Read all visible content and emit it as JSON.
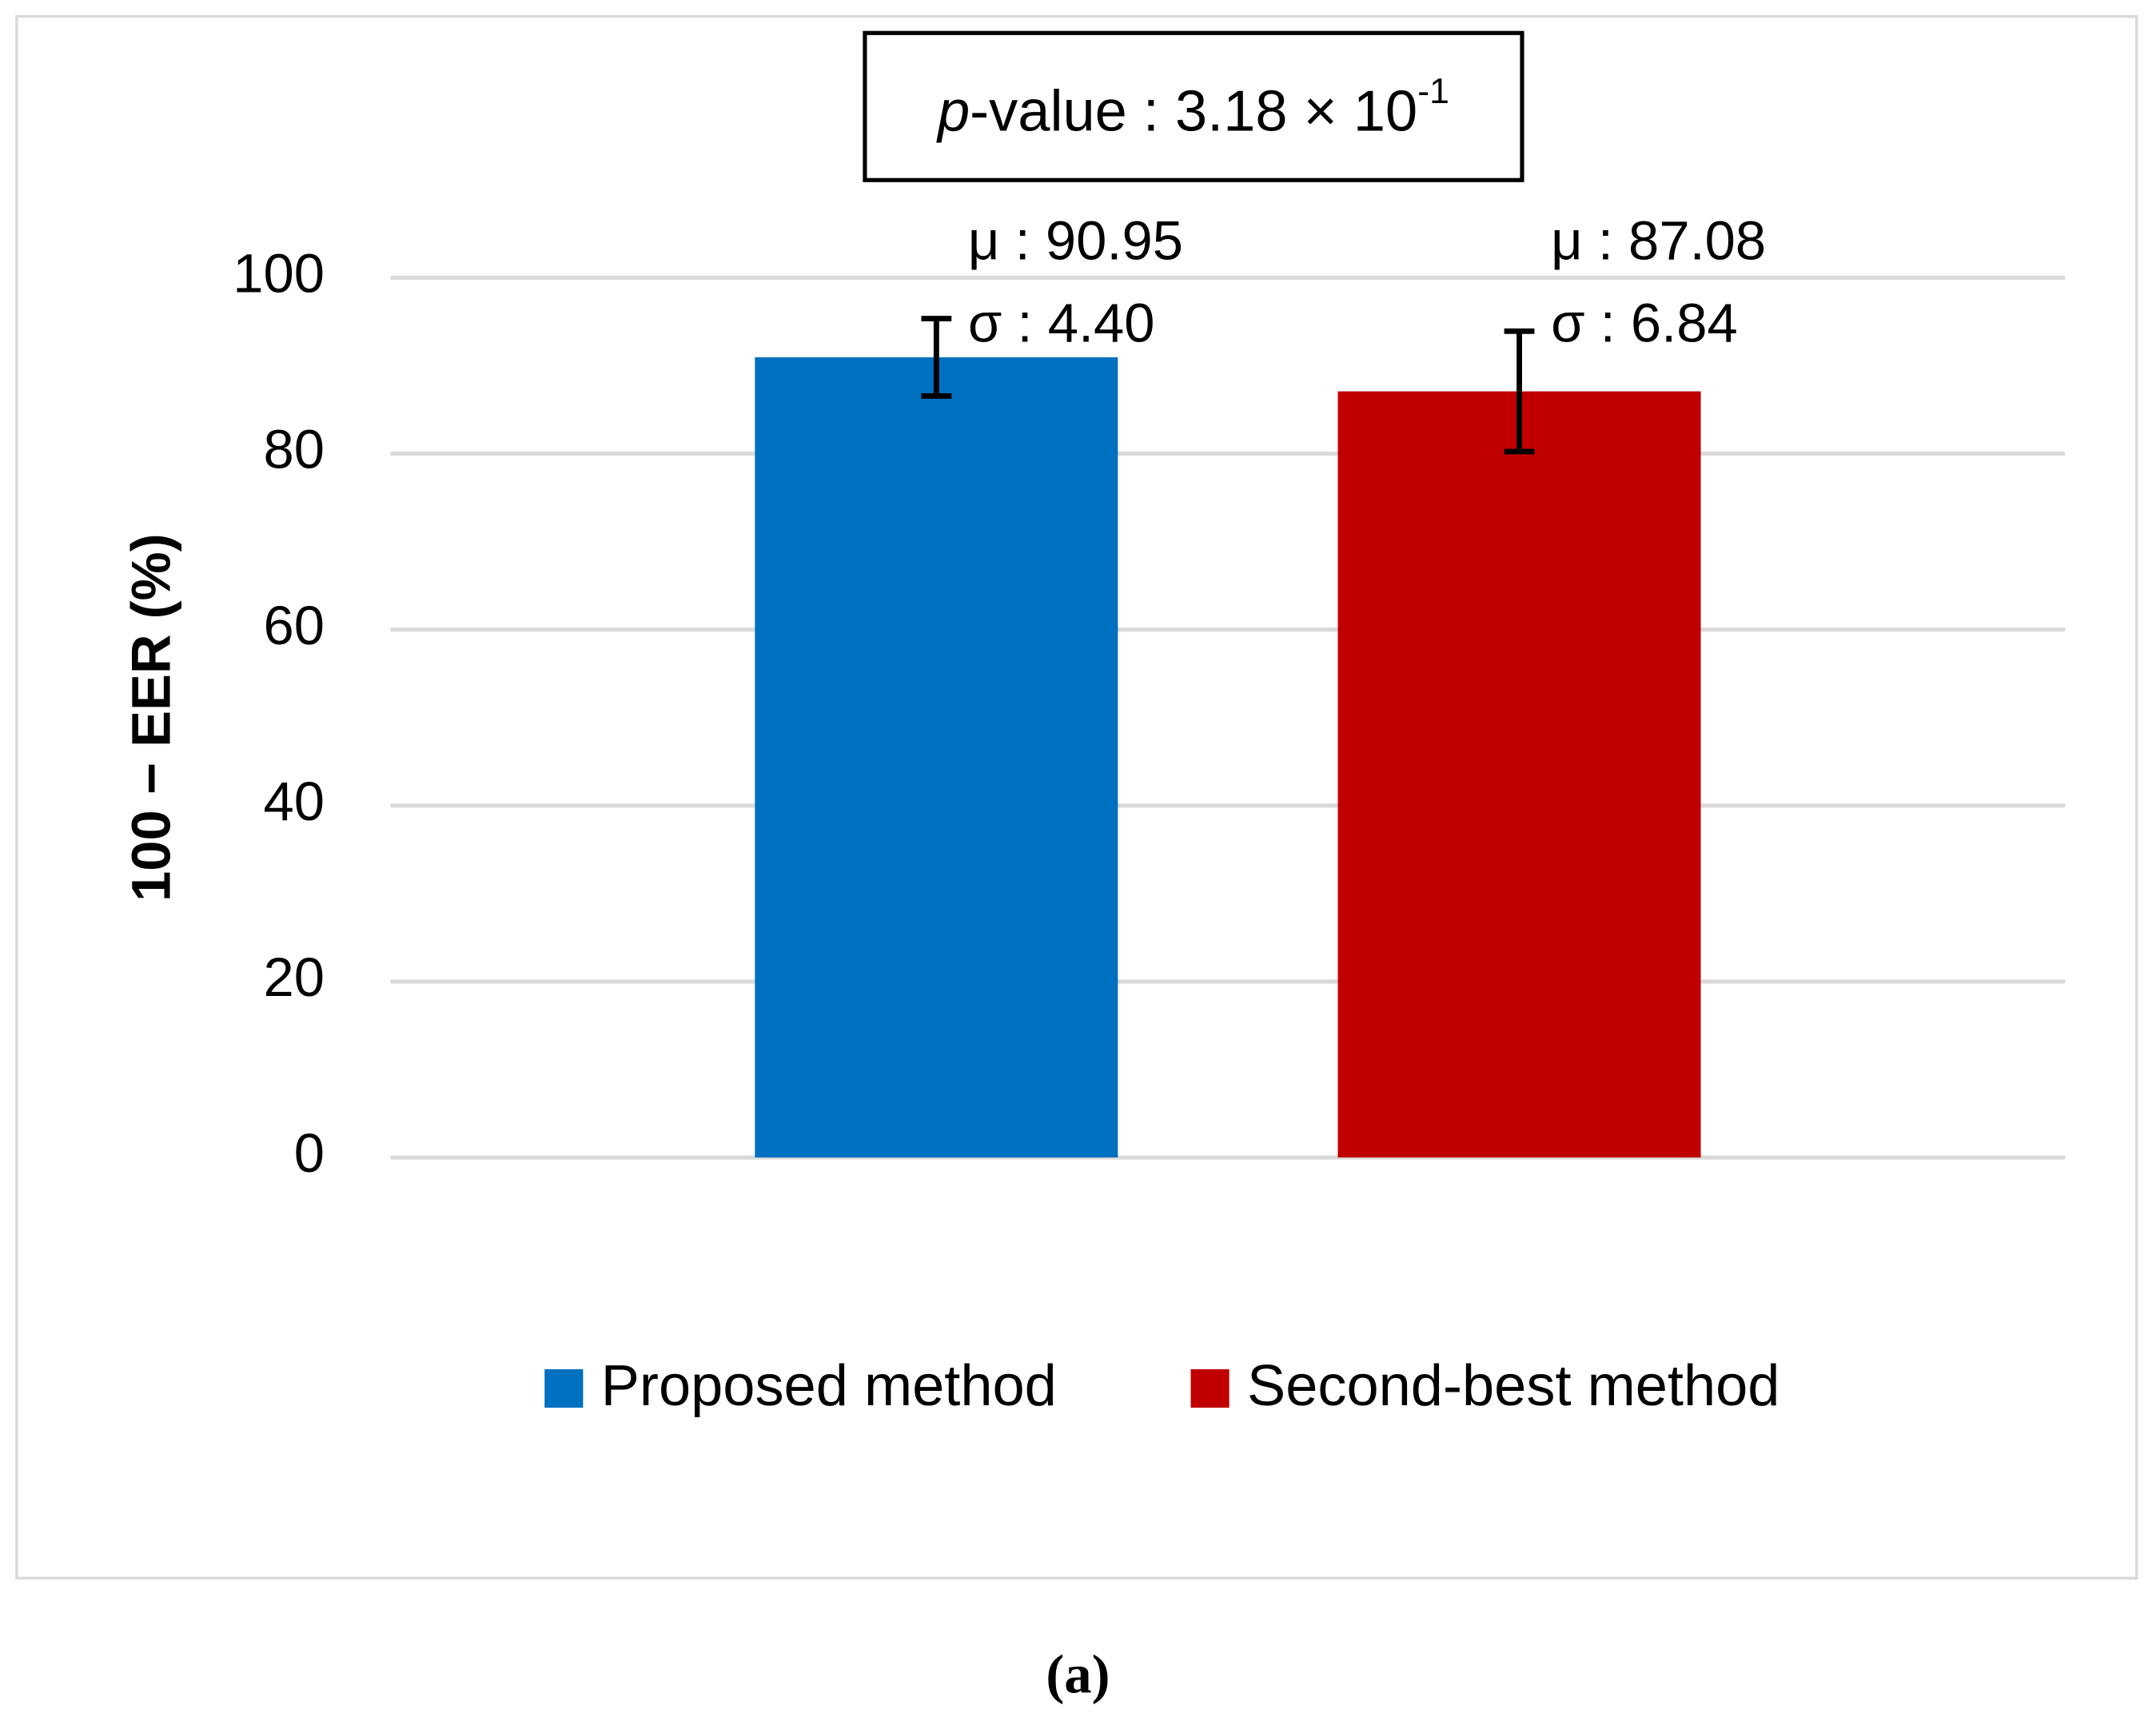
{
  "chart_data": {
    "type": "bar",
    "annotation": [
      "p",
      "-value : 3.18 × 10",
      "-1"
    ],
    "ylabel": "100 − EER (%)",
    "categories": [
      null
    ],
    "series": [
      {
        "name": "Proposed method",
        "color": "#0070c0",
        "values": [
          90.95
        ],
        "errors": [
          4.4
        ],
        "value_labels": [
          "μ : 90.95"
        ],
        "error_labels": [
          "σ : 4.40"
        ]
      },
      {
        "name": "Second-best method",
        "color": "#c00000",
        "values": [
          87.08
        ],
        "errors": [
          6.84
        ],
        "value_labels": [
          "μ  : 87.08"
        ],
        "error_labels": [
          "σ : 6.84"
        ]
      }
    ],
    "ylim": [
      0,
      100
    ],
    "yticks": [
      0,
      20,
      40,
      60,
      80,
      100
    ],
    "grid": true,
    "legend": "bottom",
    "caption": "(a)"
  }
}
